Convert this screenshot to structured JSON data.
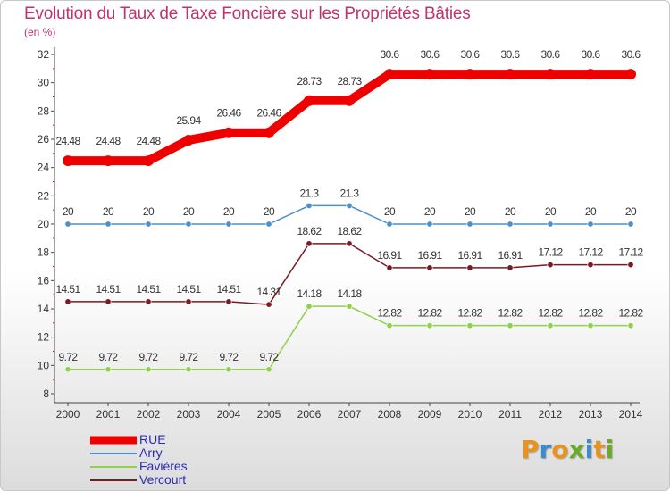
{
  "title": "Evolution du Taux de Taxe Foncière sur les Propriétés Bâties",
  "unit": "(en %)",
  "logo": {
    "letters": [
      {
        "ch": "P",
        "color": "#e8931e"
      },
      {
        "ch": "r",
        "color": "#3a8ccd"
      },
      {
        "ch": "o",
        "color": "#e8931e"
      },
      {
        "ch": "x",
        "color": "#6aaa2a"
      },
      {
        "ch": "i",
        "color": "#3a8ccd"
      },
      {
        "ch": "t",
        "color": "#e8931e"
      },
      {
        "ch": "i",
        "color": "#6aaa2a"
      }
    ]
  },
  "chart_data": {
    "type": "line",
    "title": "Evolution du Taux de Taxe Foncière sur les Propriétés Bâties",
    "ylabel": "(en %)",
    "xlabel": "",
    "ylim": [
      8,
      32
    ],
    "yticks": [
      8,
      10,
      12,
      14,
      16,
      18,
      20,
      22,
      24,
      26,
      28,
      30,
      32
    ],
    "grid": false,
    "legend_position": "bottom-left",
    "categories": [
      "2000",
      "2001",
      "2002",
      "2003",
      "2004",
      "2005",
      "2006",
      "2007",
      "2008",
      "2009",
      "2010",
      "2011",
      "2012",
      "2013",
      "2014"
    ],
    "series": [
      {
        "name": "RUE",
        "color": "#ee0000",
        "emphasis": true,
        "values": [
          24.48,
          24.48,
          24.48,
          25.94,
          26.46,
          26.46,
          28.73,
          28.73,
          30.6,
          30.6,
          30.6,
          30.6,
          30.6,
          30.6,
          30.6
        ],
        "labels": [
          "24.48",
          "24.48",
          "24.48",
          "25.94",
          "26.46",
          "26.46",
          "28.73",
          "28.73",
          "30.6",
          "30.6",
          "30.6",
          "30.6",
          "30.6",
          "30.6",
          "30.6"
        ]
      },
      {
        "name": "Arry",
        "color": "#4f8fc9",
        "values": [
          20,
          20,
          20,
          20,
          20,
          20,
          21.3,
          21.3,
          20,
          20,
          20,
          20,
          20,
          20,
          20
        ],
        "labels": [
          "20",
          "20",
          "20",
          "20",
          "20",
          "20",
          "21.3",
          "21.3",
          "20",
          "20",
          "20",
          "20",
          "20",
          "20",
          "20"
        ]
      },
      {
        "name": "Favières",
        "color": "#8ed14a",
        "values": [
          9.72,
          9.72,
          9.72,
          9.72,
          9.72,
          9.72,
          14.18,
          14.18,
          12.82,
          12.82,
          12.82,
          12.82,
          12.82,
          12.82,
          12.82
        ],
        "labels": [
          "9.72",
          "9.72",
          "9.72",
          "9.72",
          "9.72",
          "9.72",
          "14.18",
          "14.18",
          "12.82",
          "12.82",
          "12.82",
          "12.82",
          "12.82",
          "12.82",
          "12.82"
        ]
      },
      {
        "name": "Vercourt",
        "color": "#7a1a22",
        "values": [
          14.51,
          14.51,
          14.51,
          14.51,
          14.51,
          14.31,
          18.62,
          18.62,
          16.91,
          16.91,
          16.91,
          16.91,
          17.12,
          17.12,
          17.12
        ],
        "labels": [
          "14.51",
          "14.51",
          "14.51",
          "14.51",
          "14.51",
          "14.31",
          "18.62",
          "18.62",
          "16.91",
          "16.91",
          "16.91",
          "16.91",
          "17.12",
          "17.12",
          "17.12"
        ]
      }
    ]
  }
}
